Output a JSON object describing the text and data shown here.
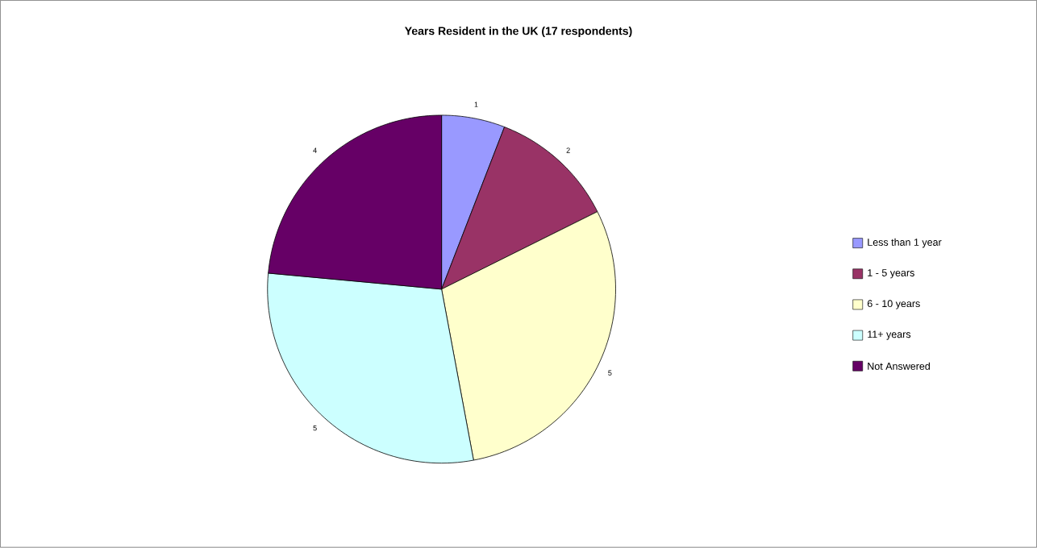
{
  "chart_data": {
    "type": "pie",
    "title": "Years Resident in the UK (17 respondents)",
    "categories": [
      "Less than 1 year",
      "1 - 5 years",
      "6 - 10 years",
      "11+ years",
      "Not Answered"
    ],
    "values": [
      1,
      2,
      5,
      5,
      4
    ],
    "colors": [
      "#9999ff",
      "#993366",
      "#ffffcc",
      "#ccffff",
      "#660066"
    ],
    "data_labels": true,
    "legend": "right"
  }
}
